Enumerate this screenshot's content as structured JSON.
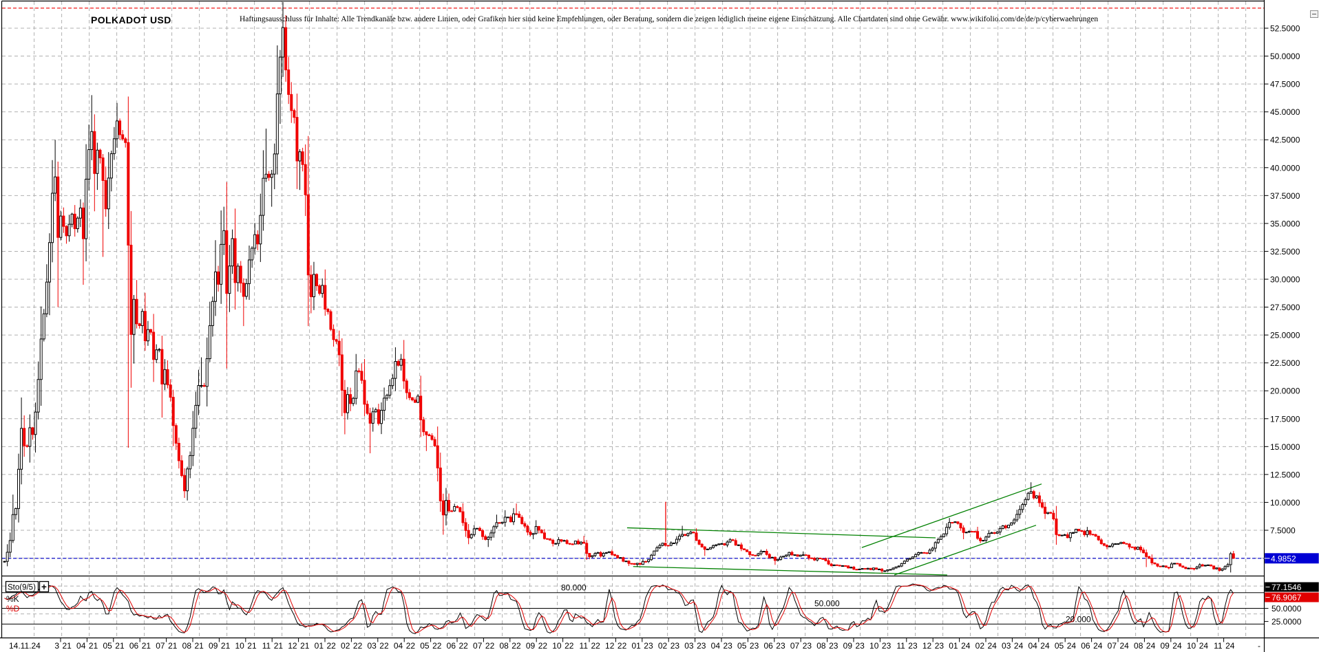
{
  "title": "POLKADOT USD",
  "disclaimer": "Haftungsausschluss für Inhalte: Alle Trendkanäle bzw. andere Linien, oder Grafiken hier sind keine Empfehlungen, oder Beratung, sondern die zeigen lediglich meine eigene Einschätzung. Alle Chartdaten sind ohne Gewähr.  www.wikifolio.com/de/de/p/cyberwaehrungen",
  "window": {
    "minimize_icon": "−"
  },
  "price_axis": {
    "labels": [
      "52.5000",
      "50.0000",
      "47.5000",
      "45.0000",
      "42.5000",
      "40.0000",
      "37.5000",
      "35.0000",
      "32.5000",
      "30.0000",
      "27.5000",
      "25.0000",
      "22.5000",
      "20.0000",
      "17.5000",
      "15.0000",
      "12.5000",
      "10.0000",
      "7.5000"
    ],
    "current_price": "4.9852"
  },
  "x_axis": {
    "origin_label": "14.11.24",
    "end_label": "-",
    "months": [
      "3.21",
      "04.21",
      "05.21",
      "06.21",
      "07.21",
      "08.21",
      "09.21",
      "10.21",
      "11.21",
      "12.21",
      "01.22",
      "02.22",
      "03.22",
      "04.22",
      "05.22",
      "06.22",
      "07.22",
      "08.22",
      "09.22",
      "10.22",
      "11.22",
      "12.22",
      "01.23",
      "02.23",
      "03.23",
      "04.23",
      "05.23",
      "06.23",
      "07.23",
      "08.23",
      "09.23",
      "10.23",
      "11.23",
      "12.23",
      "01.24",
      "02.24",
      "03.24",
      "04.24",
      "05.24",
      "06.24",
      "07.24",
      "08.24",
      "09.24",
      "10.24",
      "11.24"
    ]
  },
  "indicator": {
    "name": "Sto(9/5)",
    "plus_label": "+",
    "k_label": "%K",
    "d_label": "%D",
    "level_labels": [
      "80.000",
      "50.000",
      "20.000"
    ],
    "levels": [
      80,
      50,
      20
    ],
    "k_value": "77.1546",
    "d_value": "76.9067",
    "axis_value_50": "50.0000",
    "axis_value_25": "25.0000"
  },
  "colors": {
    "up_candle": "#ffffff",
    "up_stroke": "#000000",
    "down_candle": "#f00000",
    "trend_line": "#008000",
    "current_price_line": "#0000cc",
    "current_price_box": "#0000d4",
    "resistance_line": "#f00000",
    "k_line": "#000000",
    "d_line": "#e00000",
    "grid": "#b0b0b0"
  },
  "chart_data": {
    "type": "candlestick",
    "symbol": "POLKADOT USD",
    "quote_currency": "USD",
    "last_price": 4.9852,
    "resistance_level": 54.3,
    "current_price_level": 4.9852,
    "y_range_visible": [
      3.4,
      55.0
    ],
    "months_per_tick": 1,
    "anchors_note": "approximate close path; m = months since 2020-12-26, optional 3rd value = wick extreme",
    "anchors": [
      [
        0.0,
        4.8
      ],
      [
        0.1,
        5.4
      ],
      [
        0.22,
        6.8
      ],
      [
        0.3,
        9.3
      ],
      [
        0.38,
        8.0
      ],
      [
        0.5,
        12.0
      ],
      [
        0.66,
        17.2,
        19.4
      ],
      [
        0.8,
        14.0
      ],
      [
        0.95,
        17.0
      ],
      [
        1.1,
        15.8
      ],
      [
        1.25,
        21.0
      ],
      [
        1.45,
        26.0
      ],
      [
        1.65,
        31.0
      ],
      [
        1.8,
        38.0
      ],
      [
        1.9,
        40.0,
        42.5
      ],
      [
        2.0,
        32.5,
        27.5
      ],
      [
        2.15,
        36.0
      ],
      [
        2.35,
        33.5
      ],
      [
        2.55,
        37.0
      ],
      [
        2.7,
        34.5
      ],
      [
        2.85,
        36.5
      ],
      [
        2.95,
        32.5,
        29.5
      ],
      [
        3.05,
        37.5
      ],
      [
        3.15,
        42.0
      ],
      [
        3.25,
        45.0,
        46.5
      ],
      [
        3.4,
        40.0
      ],
      [
        3.55,
        43.0
      ],
      [
        3.7,
        38.5,
        32.0
      ],
      [
        3.85,
        35.5
      ],
      [
        4.0,
        39.5
      ],
      [
        4.15,
        42.5
      ],
      [
        4.3,
        44.0,
        45.8
      ],
      [
        4.45,
        41.5
      ],
      [
        4.55,
        43.5
      ],
      [
        4.65,
        37.0
      ],
      [
        4.72,
        28.5,
        14.9
      ],
      [
        4.8,
        23.5
      ],
      [
        4.9,
        27.5
      ],
      [
        5.05,
        25.0
      ],
      [
        5.2,
        27.5
      ],
      [
        5.35,
        24.5
      ],
      [
        5.5,
        26.5
      ],
      [
        5.65,
        22.5
      ],
      [
        5.8,
        24.5
      ],
      [
        5.95,
        20.5,
        17.6
      ],
      [
        6.1,
        22.5
      ],
      [
        6.25,
        19.5
      ],
      [
        6.4,
        17.0
      ],
      [
        6.55,
        14.5
      ],
      [
        6.7,
        12.5
      ],
      [
        6.82,
        11.2,
        10.4
      ],
      [
        6.95,
        13.5
      ],
      [
        7.1,
        15.8
      ],
      [
        7.25,
        18.5
      ],
      [
        7.4,
        21.5,
        23.0
      ],
      [
        7.55,
        20.0
      ],
      [
        7.7,
        23.5
      ],
      [
        7.85,
        26.5
      ],
      [
        8.0,
        31.0,
        33.5
      ],
      [
        8.1,
        29.0
      ],
      [
        8.2,
        33.0
      ],
      [
        8.3,
        35.0,
        36.5
      ],
      [
        8.38,
        28.0,
        22.0
      ],
      [
        8.5,
        31.0
      ],
      [
        8.62,
        33.5
      ],
      [
        8.75,
        30.0
      ],
      [
        8.9,
        32.0
      ],
      [
        9.0,
        27.5,
        25.8
      ],
      [
        9.15,
        30.0
      ],
      [
        9.3,
        32.5
      ],
      [
        9.45,
        35.0
      ],
      [
        9.6,
        33.0
      ],
      [
        9.72,
        37.5
      ],
      [
        9.85,
        41.0,
        43.5
      ],
      [
        9.95,
        39.0
      ],
      [
        10.05,
        41.5
      ],
      [
        10.15,
        39.5,
        36.5
      ],
      [
        10.3,
        44.5
      ],
      [
        10.42,
        49.0
      ],
      [
        10.5,
        53.0,
        55.3
      ],
      [
        10.6,
        50.0
      ],
      [
        10.72,
        47.5
      ],
      [
        10.85,
        45.0
      ],
      [
        11.0,
        42.5
      ],
      [
        11.12,
        39.5,
        38.0
      ],
      [
        11.25,
        41.5
      ],
      [
        11.38,
        37.0
      ],
      [
        11.48,
        30.5,
        25.8
      ],
      [
        11.6,
        28.0
      ],
      [
        11.72,
        30.5
      ],
      [
        11.85,
        27.5
      ],
      [
        11.97,
        29.5
      ],
      [
        12.12,
        28.0
      ],
      [
        12.3,
        26.0
      ],
      [
        12.45,
        24.0
      ],
      [
        12.6,
        25.5
      ],
      [
        12.75,
        20.5
      ],
      [
        12.87,
        17.8,
        16.1
      ],
      [
        13.0,
        19.5
      ],
      [
        13.15,
        18.5
      ],
      [
        13.32,
        22.0,
        23.3
      ],
      [
        13.5,
        20.5
      ],
      [
        13.68,
        18.0
      ],
      [
        13.85,
        16.5,
        14.4
      ],
      [
        14.0,
        18.5
      ],
      [
        14.15,
        17.0
      ],
      [
        14.32,
        18.5
      ],
      [
        14.55,
        20.0
      ],
      [
        14.8,
        22.0
      ],
      [
        15.0,
        22.5,
        23.3
      ],
      [
        15.2,
        20.0
      ],
      [
        15.4,
        18.5
      ],
      [
        15.6,
        19.5
      ],
      [
        15.8,
        17.0
      ],
      [
        16.0,
        15.8,
        14.6
      ],
      [
        16.15,
        16.2
      ],
      [
        16.35,
        14.0
      ],
      [
        16.47,
        10.5
      ],
      [
        16.55,
        8.8,
        7.1
      ],
      [
        16.7,
        10.0
      ],
      [
        16.85,
        9.2
      ],
      [
        17.0,
        9.9
      ],
      [
        17.2,
        9.3
      ],
      [
        17.4,
        7.8
      ],
      [
        17.55,
        6.9,
        6.25
      ],
      [
        17.7,
        7.6
      ],
      [
        17.85,
        7.9
      ],
      [
        18.05,
        7.2
      ],
      [
        18.25,
        6.7,
        6.0
      ],
      [
        18.45,
        7.4
      ],
      [
        18.65,
        8.4,
        8.9
      ],
      [
        18.8,
        8.0
      ],
      [
        18.95,
        8.9,
        9.3
      ],
      [
        19.15,
        8.4
      ],
      [
        19.35,
        9.2,
        9.9
      ],
      [
        19.55,
        8.6
      ],
      [
        19.75,
        7.6
      ],
      [
        19.95,
        7.2,
        6.7
      ],
      [
        20.15,
        7.8,
        8.4
      ],
      [
        20.35,
        7.2
      ],
      [
        20.55,
        6.6
      ],
      [
        20.75,
        6.3,
        6.05
      ],
      [
        20.95,
        6.5
      ],
      [
        21.15,
        6.3
      ],
      [
        21.4,
        6.05
      ],
      [
        21.65,
        6.3
      ],
      [
        21.9,
        6.5,
        7.0
      ],
      [
        22.0,
        5.5,
        4.85
      ],
      [
        22.15,
        5.3
      ],
      [
        22.35,
        5.6
      ],
      [
        22.55,
        5.3,
        5.05
      ],
      [
        22.75,
        5.5
      ],
      [
        23.0,
        5.45
      ],
      [
        23.25,
        5.2
      ],
      [
        23.45,
        4.75
      ],
      [
        23.65,
        4.5,
        4.3
      ],
      [
        23.9,
        4.45,
        4.22
      ],
      [
        24.12,
        4.6
      ],
      [
        24.4,
        5.1
      ],
      [
        24.65,
        5.9
      ],
      [
        24.9,
        6.35
      ],
      [
        25.1,
        6.1
      ],
      [
        25.35,
        6.6
      ],
      [
        25.6,
        7.3,
        7.9
      ],
      [
        25.8,
        6.9
      ],
      [
        26.0,
        7.4
      ],
      [
        26.2,
        6.6
      ],
      [
        26.45,
        5.7,
        5.2
      ],
      [
        26.7,
        6.1
      ],
      [
        26.95,
        6.4
      ],
      [
        27.2,
        6.2
      ],
      [
        27.45,
        6.5,
        6.8
      ],
      [
        27.7,
        6.1
      ],
      [
        27.95,
        5.8
      ],
      [
        28.2,
        5.4
      ],
      [
        28.45,
        5.3
      ],
      [
        28.7,
        5.5
      ],
      [
        28.95,
        5.2
      ],
      [
        29.2,
        4.7,
        4.4
      ],
      [
        29.45,
        5.1
      ],
      [
        29.7,
        5.3
      ],
      [
        29.95,
        5.25
      ],
      [
        30.2,
        5.4,
        5.6
      ],
      [
        30.45,
        5.1
      ],
      [
        30.7,
        5.0
      ],
      [
        30.95,
        4.9
      ],
      [
        31.2,
        4.4
      ],
      [
        31.45,
        4.5
      ],
      [
        31.7,
        4.3
      ],
      [
        31.95,
        4.2
      ],
      [
        32.2,
        4.1,
        3.95
      ],
      [
        32.45,
        4.2
      ],
      [
        32.7,
        4.05
      ],
      [
        32.95,
        4.1
      ],
      [
        33.2,
        3.9,
        3.65
      ],
      [
        33.45,
        4.0
      ],
      [
        33.7,
        4.3
      ],
      [
        33.95,
        4.5
      ],
      [
        34.2,
        4.9
      ],
      [
        34.45,
        5.3
      ],
      [
        34.7,
        5.4
      ],
      [
        34.95,
        5.6
      ],
      [
        35.2,
        6.4
      ],
      [
        35.45,
        7.0
      ],
      [
        35.7,
        8.3,
        8.6
      ],
      [
        35.85,
        7.9
      ],
      [
        36.0,
        8.3
      ],
      [
        36.12,
        7.8
      ],
      [
        36.3,
        7.0,
        6.7
      ],
      [
        36.5,
        7.4
      ],
      [
        36.7,
        7.1
      ],
      [
        36.9,
        6.6,
        6.35
      ],
      [
        37.1,
        7.0
      ],
      [
        37.3,
        7.5
      ],
      [
        37.5,
        7.3
      ],
      [
        37.7,
        7.9
      ],
      [
        37.9,
        7.6
      ],
      [
        38.1,
        8.2
      ],
      [
        38.3,
        9.0
      ],
      [
        38.5,
        9.6
      ],
      [
        38.65,
        10.4
      ],
      [
        38.8,
        11.2,
        11.8
      ],
      [
        38.9,
        10.2
      ],
      [
        39.05,
        10.6
      ],
      [
        39.2,
        9.4
      ],
      [
        39.4,
        9.0
      ],
      [
        39.55,
        9.5
      ],
      [
        39.7,
        8.5
      ],
      [
        39.82,
        6.9,
        6.2
      ],
      [
        40.0,
        7.1
      ],
      [
        40.2,
        6.7
      ],
      [
        40.4,
        7.3
      ],
      [
        40.6,
        7.5
      ],
      [
        40.8,
        7.2
      ],
      [
        41.0,
        7.4,
        7.8
      ],
      [
        41.2,
        7.0
      ],
      [
        41.45,
        6.6
      ],
      [
        41.7,
        6.2,
        5.8
      ],
      [
        41.95,
        6.4
      ],
      [
        42.2,
        6.3
      ],
      [
        42.45,
        6.4
      ],
      [
        42.7,
        6.0
      ],
      [
        42.95,
        5.8
      ],
      [
        43.2,
        5.2,
        4.2
      ],
      [
        43.4,
        4.6
      ],
      [
        43.6,
        4.4
      ],
      [
        43.8,
        4.3
      ],
      [
        44.0,
        4.2,
        4.0
      ],
      [
        44.25,
        4.5
      ],
      [
        44.5,
        4.3
      ],
      [
        44.75,
        4.2
      ],
      [
        45.0,
        4.1,
        3.9
      ],
      [
        45.25,
        4.3
      ],
      [
        45.5,
        4.5
      ],
      [
        45.75,
        4.2
      ],
      [
        46.0,
        3.95,
        3.8
      ],
      [
        46.2,
        4.3
      ],
      [
        46.42,
        5.4
      ],
      [
        46.55,
        4.9852,
        5.65
      ]
    ],
    "trend_lines": [
      {
        "name": "descending-channel-top",
        "m1": 23.55,
        "p1": 7.72,
        "m2": 35.22,
        "p2": 6.82
      },
      {
        "name": "descending-channel-bottom",
        "m1": 23.78,
        "p1": 4.25,
        "m2": 35.66,
        "p2": 3.35
      },
      {
        "name": "ascending-channel-bottom",
        "m1": 33.66,
        "p1": 3.35,
        "m2": 39.02,
        "p2": 7.95
      },
      {
        "name": "ascending-channel-top",
        "m1": 32.43,
        "p1": 5.95,
        "m2": 39.23,
        "p2": 11.65
      }
    ],
    "event_line": {
      "m": 25.01,
      "p1": 10.05,
      "p2": 6.45
    },
    "stochastic": {
      "name": "Sto(9/5)",
      "k": 77.1546,
      "d": 76.9067,
      "levels": [
        80,
        50,
        20
      ]
    }
  }
}
